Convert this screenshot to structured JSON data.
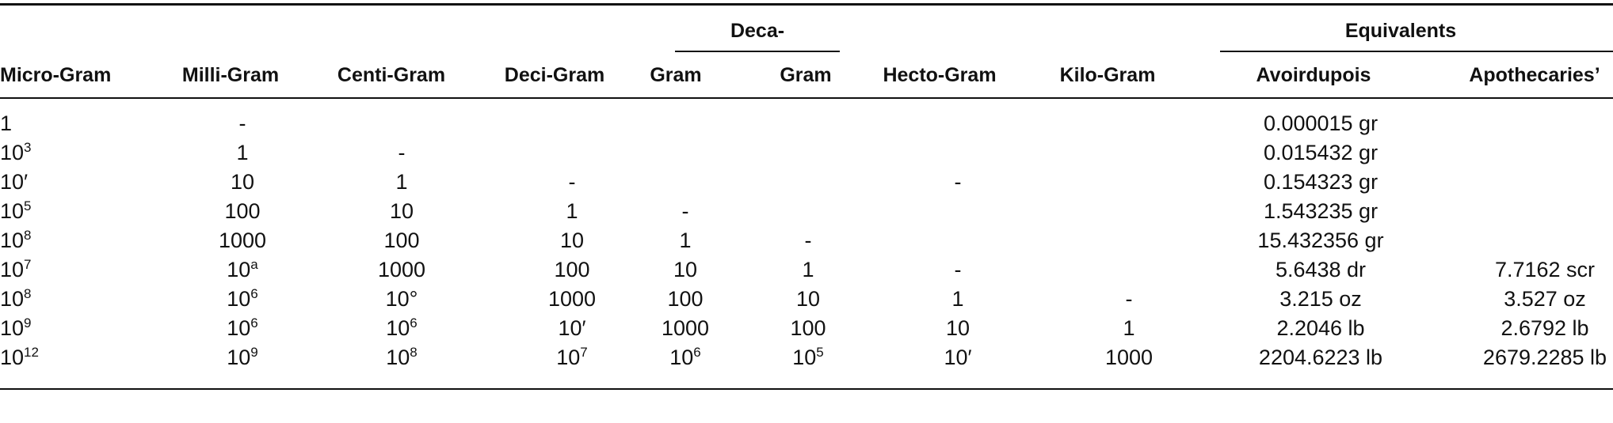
{
  "table": {
    "group_headers": [
      "Deca-",
      "Equivalents"
    ],
    "columns": [
      "Micro-Gram",
      "Milli-Gram",
      "Centi-Gram",
      "Deci-Gram",
      "Gram",
      "Gram",
      "Hecto-Gram",
      "Kilo-Gram",
      "Avoirdupois",
      "Apothecaries’"
    ],
    "rows": [
      [
        "1",
        "-",
        null,
        null,
        null,
        null,
        null,
        null,
        "0.000015 gr",
        null
      ],
      [
        {
          "base": "10",
          "sup": "3"
        },
        "1",
        "-",
        null,
        null,
        null,
        null,
        null,
        "0.015432 gr",
        null
      ],
      [
        "10′",
        "10",
        "1",
        "-",
        null,
        null,
        "-",
        null,
        "0.154323 gr",
        null
      ],
      [
        {
          "base": "10",
          "sup": "5"
        },
        "100",
        "10",
        "1",
        "-",
        null,
        null,
        null,
        "1.543235 gr",
        null
      ],
      [
        {
          "base": "10",
          "sup": "8"
        },
        "1000",
        "100",
        "10",
        "1",
        "-",
        null,
        null,
        "15.432356 gr",
        null
      ],
      [
        {
          "base": "10",
          "sup": "7"
        },
        {
          "base": "10",
          "sup": "a"
        },
        "1000",
        "100",
        "10",
        "1",
        "-",
        null,
        "5.6438 dr",
        "7.7162 scr"
      ],
      [
        {
          "base": "10",
          "sup": "8"
        },
        {
          "base": "10",
          "sup": "6"
        },
        "10°",
        "1000",
        "100",
        "10",
        "1",
        "-",
        "3.215 oz",
        "3.527 oz"
      ],
      [
        {
          "base": "10",
          "sup": "9"
        },
        {
          "base": "10",
          "sup": "6"
        },
        {
          "base": "10",
          "sup": "6"
        },
        "10′",
        "1000",
        "100",
        "10",
        "1",
        "2.2046 lb",
        "2.6792 lb"
      ],
      [
        {
          "base": "10",
          "sup": "12"
        },
        {
          "base": "10",
          "sup": "9"
        },
        {
          "base": "10",
          "sup": "8"
        },
        {
          "base": "10",
          "sup": "7"
        },
        {
          "base": "10",
          "sup": "6"
        },
        {
          "base": "10",
          "sup": "5"
        },
        "10′",
        "1000",
        "2204.6223 lb",
        "2679.2285 lb"
      ]
    ]
  }
}
